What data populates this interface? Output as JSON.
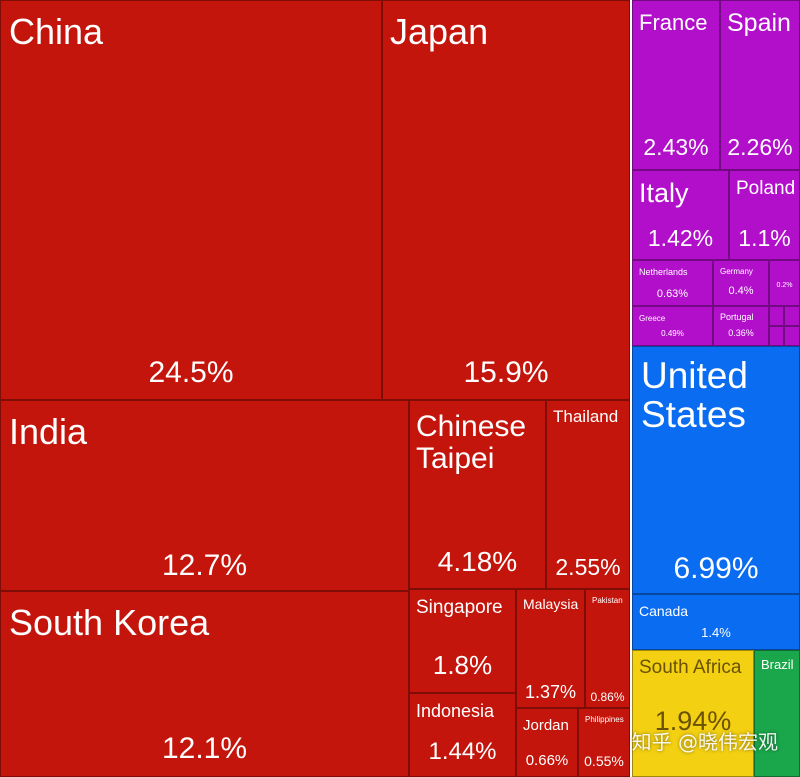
{
  "chart_data": {
    "type": "treemap",
    "colors": {
      "asia": "#C4150C",
      "europe": "#B20FCB",
      "north_america": "#0A6CF0",
      "africa": "#F4D012",
      "south_america": "#1AA64A"
    },
    "items": [
      {
        "name": "China",
        "value": 24.5,
        "pct_label": "24.5%",
        "region": "asia"
      },
      {
        "name": "Japan",
        "value": 15.9,
        "pct_label": "15.9%",
        "region": "asia"
      },
      {
        "name": "India",
        "value": 12.7,
        "pct_label": "12.7%",
        "region": "asia"
      },
      {
        "name": "South Korea",
        "value": 12.1,
        "pct_label": "12.1%",
        "region": "asia"
      },
      {
        "name": "Chinese\nTaipei",
        "value": 4.18,
        "pct_label": "4.18%",
        "region": "asia"
      },
      {
        "name": "Thailand",
        "value": 2.55,
        "pct_label": "2.55%",
        "region": "asia"
      },
      {
        "name": "Singapore",
        "value": 1.8,
        "pct_label": "1.8%",
        "region": "asia"
      },
      {
        "name": "Malaysia",
        "value": 1.37,
        "pct_label": "1.37%",
        "region": "asia"
      },
      {
        "name": "Pakistan",
        "value": 0.86,
        "pct_label": "0.86%",
        "region": "asia"
      },
      {
        "name": "Indonesia",
        "value": 1.44,
        "pct_label": "1.44%",
        "region": "asia"
      },
      {
        "name": "Jordan",
        "value": 0.66,
        "pct_label": "0.66%",
        "region": "asia"
      },
      {
        "name": "Philippines",
        "value": 0.55,
        "pct_label": "0.55%",
        "region": "asia"
      },
      {
        "name": "France",
        "value": 2.43,
        "pct_label": "2.43%",
        "region": "europe"
      },
      {
        "name": "Spain",
        "value": 2.26,
        "pct_label": "2.26%",
        "region": "europe"
      },
      {
        "name": "Italy",
        "value": 1.42,
        "pct_label": "1.42%",
        "region": "europe"
      },
      {
        "name": "Poland",
        "value": 1.1,
        "pct_label": "1.1%",
        "region": "europe"
      },
      {
        "name": "Netherlands",
        "value": 0.63,
        "pct_label": "0.63%",
        "region": "europe"
      },
      {
        "name": "Germany",
        "value": 0.4,
        "pct_label": "0.4%",
        "region": "europe"
      },
      {
        "name": "",
        "value": 0.2,
        "pct_label": "0.2%",
        "region": "europe"
      },
      {
        "name": "Greece",
        "value": 0.49,
        "pct_label": "0.49%",
        "region": "europe"
      },
      {
        "name": "Portugal",
        "value": 0.36,
        "pct_label": "0.36%",
        "region": "europe"
      },
      {
        "name": "United\nStates",
        "value": 6.99,
        "pct_label": "6.99%",
        "region": "north_america"
      },
      {
        "name": "Canada",
        "value": 1.4,
        "pct_label": "1.4%",
        "region": "north_america"
      },
      {
        "name": "South Africa",
        "value": 1.94,
        "pct_label": "1.94%",
        "region": "africa"
      },
      {
        "name": "Brazil",
        "value": null,
        "pct_label": "",
        "region": "south_america"
      }
    ]
  },
  "watermark": "知乎 @晓伟宏观"
}
